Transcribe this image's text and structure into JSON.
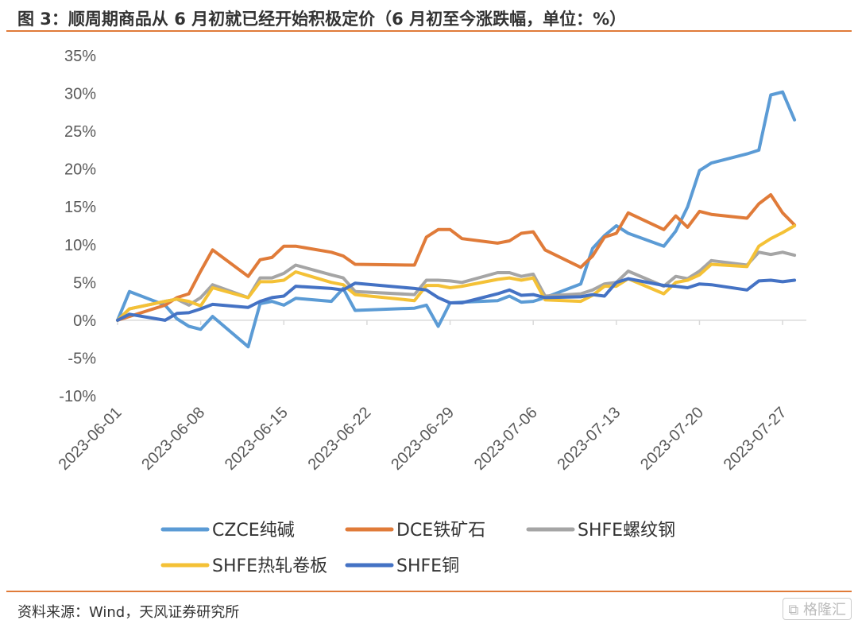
{
  "header": {
    "title": "图 3：顺周期商品从 6 月初就已经开始积极定价（6 月初至今涨跌幅，单位：%）"
  },
  "footer": {
    "source": "资料来源：Wind，天风证券研究所",
    "watermark": "格隆汇"
  },
  "colors": {
    "rule": "#e07b39",
    "CZCE纯碱": "#5b9bd5",
    "DCE铁矿石": "#e07b39",
    "SHFE螺纹钢": "#a5a5a5",
    "SHFE热轧卷板": "#f4c136",
    "SHFE铜": "#4472c4"
  },
  "chart_data": {
    "type": "line",
    "title": "",
    "xlabel": "",
    "ylabel": "",
    "ylim": [
      -10,
      35
    ],
    "y_ticks": [
      -10,
      -5,
      0,
      5,
      10,
      15,
      20,
      25,
      30,
      35
    ],
    "y_tick_labels": [
      "-10%",
      "-5%",
      "0%",
      "5%",
      "10%",
      "15%",
      "20%",
      "25%",
      "30%",
      "35%"
    ],
    "x_tick_labels": [
      "2023-06-01",
      "2023-06-08",
      "2023-06-15",
      "2023-06-22",
      "2023-06-29",
      "2023-07-06",
      "2023-07-13",
      "2023-07-20",
      "2023-07-27"
    ],
    "x_tick_dates": [
      "2023-06-01",
      "2023-06-08",
      "2023-06-15",
      "2023-06-22",
      "2023-06-29",
      "2023-07-06",
      "2023-07-13",
      "2023-07-20",
      "2023-07-27"
    ],
    "xlim": [
      "2023-06-01",
      "2023-07-29"
    ],
    "grid": false,
    "legend_position": "bottom",
    "x": [
      "2023-06-01",
      "2023-06-02",
      "2023-06-05",
      "2023-06-06",
      "2023-06-07",
      "2023-06-08",
      "2023-06-09",
      "2023-06-12",
      "2023-06-13",
      "2023-06-14",
      "2023-06-15",
      "2023-06-16",
      "2023-06-19",
      "2023-06-20",
      "2023-06-21",
      "2023-06-26",
      "2023-06-27",
      "2023-06-28",
      "2023-06-29",
      "2023-06-30",
      "2023-07-03",
      "2023-07-04",
      "2023-07-05",
      "2023-07-06",
      "2023-07-07",
      "2023-07-10",
      "2023-07-11",
      "2023-07-12",
      "2023-07-13",
      "2023-07-14",
      "2023-07-17",
      "2023-07-18",
      "2023-07-19",
      "2023-07-20",
      "2023-07-21",
      "2023-07-24",
      "2023-07-25",
      "2023-07-26",
      "2023-07-27",
      "2023-07-28"
    ],
    "series": [
      {
        "name": "CZCE纯碱",
        "values": [
          0,
          3.8,
          2.0,
          0.2,
          -0.8,
          -1.2,
          0.5,
          -3.5,
          2.2,
          2.5,
          2.0,
          2.9,
          2.5,
          4.2,
          1.3,
          1.6,
          2.0,
          -0.8,
          2.3,
          2.4,
          2.6,
          3.2,
          2.4,
          2.5,
          3.0,
          4.8,
          9.5,
          11.2,
          12.5,
          11.5,
          9.8,
          11.8,
          15.0,
          19.8,
          20.8,
          22.0,
          22.5,
          29.8,
          30.2,
          26.5
        ]
      },
      {
        "name": "DCE铁矿石",
        "values": [
          0,
          0.5,
          2.0,
          3.0,
          3.5,
          6.5,
          9.3,
          5.8,
          8.0,
          8.3,
          9.8,
          9.8,
          9.0,
          8.5,
          7.4,
          7.3,
          11.0,
          12.0,
          12.0,
          10.8,
          10.2,
          10.5,
          11.5,
          11.7,
          9.3,
          7.0,
          8.5,
          11.0,
          11.5,
          14.2,
          12.0,
          13.8,
          12.3,
          14.4,
          14.0,
          13.5,
          15.4,
          16.6,
          14.2,
          12.6
        ]
      },
      {
        "name": "SHFE螺纹钢",
        "values": [
          0,
          1.5,
          2.5,
          2.8,
          2.0,
          3.0,
          4.7,
          3.0,
          5.6,
          5.6,
          6.2,
          7.3,
          6.0,
          5.6,
          3.8,
          3.4,
          5.3,
          5.3,
          5.2,
          5.0,
          6.3,
          6.3,
          5.8,
          6.1,
          3.2,
          3.5,
          4.0,
          4.8,
          5.0,
          6.5,
          4.5,
          5.8,
          5.5,
          6.5,
          7.9,
          7.3,
          9.0,
          8.7,
          9.0,
          8.6
        ]
      },
      {
        "name": "SHFE热轧卷板",
        "values": [
          0,
          1.5,
          2.5,
          2.8,
          2.5,
          1.9,
          4.3,
          3.0,
          5.1,
          5.1,
          5.3,
          6.4,
          5.0,
          4.7,
          3.4,
          2.6,
          4.6,
          4.6,
          4.3,
          4.5,
          5.4,
          5.6,
          5.3,
          5.6,
          2.7,
          2.5,
          3.3,
          4.5,
          4.5,
          5.5,
          3.5,
          5.0,
          5.3,
          6.0,
          7.4,
          7.1,
          9.8,
          10.8,
          11.6,
          12.5
        ]
      },
      {
        "name": "SHFE铜",
        "values": [
          0,
          0.8,
          0.0,
          0.9,
          1.0,
          1.5,
          2.1,
          1.7,
          2.5,
          3.0,
          3.2,
          4.5,
          4.2,
          4.0,
          4.9,
          4.2,
          4.0,
          3.0,
          2.3,
          2.3,
          3.5,
          4.0,
          3.3,
          3.4,
          3.0,
          3.1,
          3.4,
          3.2,
          5.0,
          5.5,
          4.6,
          4.5,
          4.3,
          4.8,
          4.7,
          4.0,
          5.2,
          5.3,
          5.1,
          5.3
        ]
      }
    ]
  }
}
